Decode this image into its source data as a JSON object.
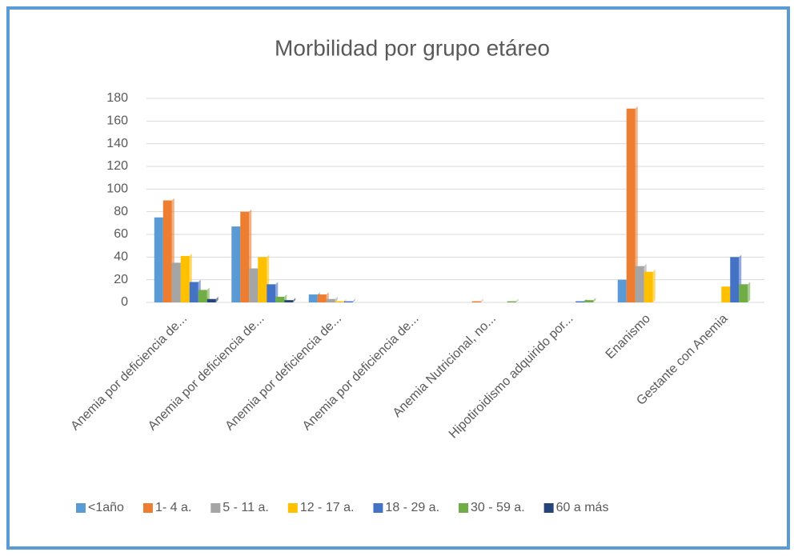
{
  "chart_data": {
    "type": "bar",
    "title": "Morbilidad por grupo etáreo",
    "categories": [
      "Anemia por deficiencia de...",
      "Anemia por deficiencia de...",
      "Anemia por deficiencia de...",
      "Anemia por deficiencia de...",
      "Anemia Nutricional, no...",
      "Hipotiroidismo adquirido por...",
      "Enanismo",
      "Gestante con Anemia"
    ],
    "series": [
      {
        "name": "<1año",
        "color": "#5b9bd5",
        "values": [
          75,
          67,
          7,
          0,
          0,
          0,
          20,
          0
        ]
      },
      {
        "name": "1- 4 a.",
        "color": "#ed7d31",
        "values": [
          90,
          80,
          7,
          0,
          1,
          0,
          171,
          0
        ]
      },
      {
        "name": "5 - 11 a.",
        "color": "#a5a5a5",
        "values": [
          35,
          30,
          3,
          0,
          0,
          0,
          32,
          0
        ]
      },
      {
        "name": "12 - 17 a.",
        "color": "#ffc000",
        "values": [
          41,
          40,
          1,
          0,
          0,
          0,
          27,
          14
        ]
      },
      {
        "name": "18 - 29 a.",
        "color": "#4472c4",
        "values": [
          18,
          16,
          1,
          0,
          0,
          1,
          0,
          40
        ]
      },
      {
        "name": "30 - 59 a.",
        "color": "#70ad47",
        "values": [
          11,
          5,
          0,
          0,
          1,
          2,
          0,
          16
        ]
      },
      {
        "name": "60 a más",
        "color": "#264478",
        "values": [
          3,
          2,
          0,
          0,
          0,
          0,
          0,
          0
        ]
      }
    ],
    "ylim": [
      0,
      180
    ],
    "yticks": [
      0,
      20,
      40,
      60,
      80,
      100,
      120,
      140,
      160,
      180
    ],
    "grid": true,
    "legend": "bottom"
  }
}
